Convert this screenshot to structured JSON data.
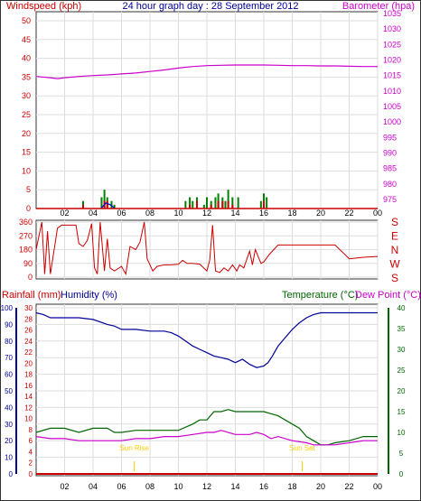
{
  "colors": {
    "wind_axis": "#cc0000",
    "barometer": "#cc00cc",
    "title": "#000099",
    "gust_bar": "#008000",
    "avg_bar": "#cc0000",
    "mean_line": "#0000cc",
    "rain_axis": "#cc0000",
    "humidity": "#000099",
    "temperature": "#006600",
    "dew_point": "#cc00cc",
    "sun_marker": "#ffcc00",
    "frame": "#333333",
    "grid": "#dddddd"
  },
  "chart_data": [
    {
      "type": "line",
      "title": "24 hour graph day : 28 September 2012",
      "ylabel_left": "Windspeed (kph)",
      "ylabel_right": "Barometer (hpa)",
      "x_ticks": [
        "02",
        "04",
        "06",
        "08",
        "10",
        "12",
        "14",
        "16",
        "18",
        "20",
        "22",
        "00"
      ],
      "x_range": [
        0,
        24
      ],
      "ylim_left": [
        0,
        50
      ],
      "y_ticks_left": [
        "0",
        "5",
        "10",
        "15",
        "20",
        "25",
        "30",
        "35",
        "40",
        "45",
        "50"
      ],
      "ylim_right": [
        975,
        1035
      ],
      "y_ticks_right": [
        "975",
        "980",
        "985",
        "990",
        "995",
        "1000",
        "1005",
        "1010",
        "1015",
        "1020",
        "1025",
        "1030",
        "1035"
      ],
      "grid": true,
      "series": [
        {
          "name": "Barometer",
          "x": [
            0,
            1,
            1.5,
            2,
            3,
            4,
            5,
            6,
            7,
            8,
            9,
            10,
            11,
            12,
            13,
            14,
            15,
            16,
            17,
            18,
            19,
            20,
            21,
            22,
            23,
            24
          ],
          "values": [
            1014.7,
            1014.3,
            1014.0,
            1014.3,
            1014.7,
            1015.0,
            1015.2,
            1015.5,
            1015.8,
            1016.3,
            1016.8,
            1017.4,
            1017.9,
            1018.2,
            1018.3,
            1018.4,
            1018.4,
            1018.4,
            1018.3,
            1018.2,
            1018.2,
            1018.1,
            1018.1,
            1018.0,
            1017.9,
            1017.9
          ]
        },
        {
          "name": "Gust",
          "type": "bar",
          "x": [
            3.3,
            4.6,
            4.8,
            5.0,
            5.3,
            5.5,
            10.5,
            10.8,
            11.0,
            11.3,
            11.8,
            12.0,
            12.3,
            12.6,
            12.8,
            13.1,
            13.3,
            13.5,
            13.8,
            14.2,
            15.8,
            16.0,
            16.2
          ],
          "values": [
            2,
            3,
            5,
            3,
            2,
            1,
            2,
            3,
            2,
            3,
            1,
            3,
            2,
            3,
            4,
            3,
            2,
            5,
            3,
            3,
            2,
            4,
            3
          ]
        },
        {
          "name": "Average",
          "type": "bar",
          "x": [
            3.3,
            4.8,
            5.0,
            10.8,
            11.3,
            12.3,
            12.8,
            13.1,
            13.5,
            13.8,
            16.0
          ],
          "values": [
            1,
            2,
            2,
            1,
            2,
            1,
            2,
            2,
            2,
            1,
            2
          ]
        },
        {
          "name": "Mean",
          "x": [
            4.6,
            4.9,
            5.2,
            5.5
          ],
          "values": [
            0.2,
            1.5,
            1.0,
            0.2
          ]
        }
      ]
    },
    {
      "type": "line",
      "ylabel": "",
      "x_range": [
        0,
        24
      ],
      "ylim": [
        0,
        360
      ],
      "y_ticks": [
        "0",
        "90",
        "180",
        "270",
        "360"
      ],
      "compass_labels": [
        "S",
        "E",
        "N",
        "W",
        "S"
      ],
      "grid": true,
      "series": [
        {
          "name": "Direction",
          "x": [
            0,
            0.4,
            0.6,
            0.8,
            1.0,
            1.5,
            1.8,
            2.3,
            2.6,
            2.8,
            3.0,
            3.3,
            3.6,
            3.9,
            4.1,
            4.3,
            4.5,
            4.8,
            5.0,
            5.2,
            5.5,
            6.0,
            6.3,
            6.6,
            7.0,
            7.3,
            7.6,
            7.8,
            8.0,
            8.2,
            8.5,
            9.0,
            9.5,
            10.0,
            10.3,
            10.6,
            11.0,
            11.5,
            12.0,
            12.2,
            12.4,
            12.6,
            12.9,
            13.2,
            13.5,
            13.8,
            14.1,
            14.3,
            14.6,
            15.0,
            15.2,
            15.4,
            15.8,
            16.0,
            16.4,
            17.0,
            18.0,
            19.0,
            20.0,
            21.0,
            21.9,
            22.0,
            23.0,
            24.0
          ],
          "values": [
            180,
            360,
            20,
            300,
            20,
            320,
            340,
            340,
            340,
            340,
            220,
            200,
            240,
            350,
            60,
            20,
            360,
            40,
            250,
            60,
            40,
            70,
            20,
            200,
            180,
            230,
            360,
            120,
            80,
            40,
            70,
            80,
            80,
            85,
            110,
            90,
            90,
            85,
            40,
            110,
            340,
            40,
            30,
            60,
            40,
            80,
            40,
            80,
            60,
            170,
            80,
            180,
            90,
            100,
            150,
            210,
            210,
            210,
            210,
            210,
            130,
            120,
            130,
            135
          ]
        }
      ]
    },
    {
      "type": "line",
      "ylabel_left_rain": "Rainfall (mm)",
      "ylabel_left_humidity": "Humidity (%)",
      "ylabel_right_temp": "Temperature (°C)",
      "ylabel_right_dew": "Dew Point (°C)",
      "x_ticks": [
        "02",
        "04",
        "06",
        "08",
        "10",
        "12",
        "14",
        "16",
        "18",
        "20",
        "22",
        "00"
      ],
      "x_range": [
        0,
        24
      ],
      "ylim_rain": [
        0,
        30
      ],
      "y_ticks_rain": [
        "0",
        "2",
        "4",
        "6",
        "8",
        "10",
        "12",
        "14",
        "16",
        "18",
        "20",
        "22",
        "24",
        "26",
        "28",
        "30"
      ],
      "ylim_humidity": [
        0,
        100
      ],
      "y_ticks_humidity": [
        "0",
        "10",
        "20",
        "30",
        "40",
        "50",
        "60",
        "70",
        "80",
        "90",
        "100"
      ],
      "ylim_temp": [
        0,
        40
      ],
      "y_ticks_temp": [
        "0",
        "5",
        "10",
        "15",
        "20",
        "25",
        "30",
        "35",
        "40"
      ],
      "grid": true,
      "annotations": [
        {
          "text": "Sun Rise",
          "x": 6.9
        },
        {
          "text": "Sun Set",
          "x": 18.7
        }
      ],
      "series": [
        {
          "name": "Humidity",
          "x": [
            0,
            0.5,
            1.0,
            2.0,
            3.0,
            4.0,
            5.0,
            5.5,
            6.0,
            7.0,
            8.0,
            9.0,
            9.5,
            10.0,
            10.5,
            11.0,
            11.5,
            12.0,
            12.5,
            13.0,
            13.5,
            14.0,
            14.5,
            15.0,
            15.5,
            16.0,
            16.3,
            16.6,
            17.0,
            17.5,
            18.0,
            18.5,
            19.0,
            19.5,
            20.0,
            21.0,
            22.0,
            23.0,
            24.0
          ],
          "values": [
            97,
            96,
            94,
            94,
            94,
            93,
            90,
            89,
            87,
            87,
            86,
            86,
            85,
            83,
            80,
            77,
            75,
            73,
            71,
            70,
            69,
            67,
            69,
            66,
            64,
            65,
            67,
            71,
            77,
            82,
            87,
            91,
            94,
            96,
            97,
            97,
            97,
            97,
            97
          ]
        },
        {
          "name": "Temperature",
          "x": [
            0,
            1.0,
            2.0,
            3.0,
            4.0,
            5.0,
            5.5,
            6.0,
            7.0,
            8.0,
            9.0,
            10.0,
            11.0,
            11.5,
            12.0,
            12.5,
            13.0,
            13.5,
            14.0,
            15.0,
            16.0,
            16.5,
            17.0,
            18.0,
            18.5,
            19.0,
            19.5,
            20.0,
            20.5,
            21.0,
            22.0,
            23.0,
            24.0
          ],
          "values": [
            10,
            11,
            11,
            10,
            11,
            11,
            10,
            10,
            10.5,
            10.5,
            10.5,
            10.5,
            12,
            13,
            13,
            15,
            15,
            15.5,
            15,
            15,
            15,
            14.5,
            14,
            12,
            11,
            9,
            8,
            7,
            7,
            7.5,
            8,
            9,
            9
          ]
        },
        {
          "name": "Dew Point",
          "x": [
            0,
            1.0,
            2.0,
            3.0,
            4.0,
            5.0,
            6.0,
            7.0,
            8.0,
            9.0,
            10.0,
            11.0,
            12.0,
            12.5,
            13.0,
            14.0,
            15.0,
            15.5,
            16.0,
            16.5,
            17.0,
            18.0,
            19.0,
            19.5,
            20.0,
            21.0,
            22.0,
            23.0,
            24.0
          ],
          "values": [
            9,
            8.5,
            8.5,
            8,
            8,
            8,
            8,
            8.5,
            8.5,
            9,
            9,
            9.5,
            10,
            10,
            10.5,
            9.5,
            9.5,
            10,
            9.5,
            8.5,
            9,
            8,
            7.5,
            7,
            7,
            7,
            7.5,
            8,
            8
          ]
        },
        {
          "name": "Rainfall",
          "x": [
            0,
            24
          ],
          "values": [
            0,
            0
          ]
        }
      ]
    }
  ]
}
